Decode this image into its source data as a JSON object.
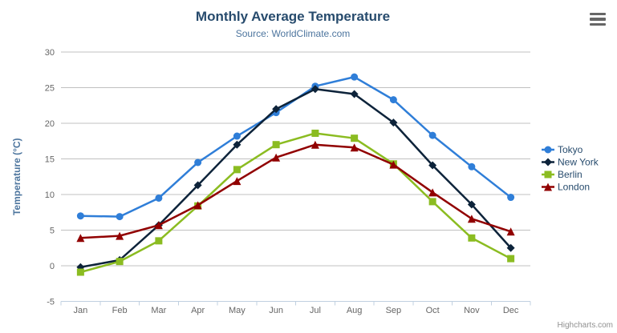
{
  "chart_data": {
    "type": "line",
    "title": "Monthly Average Temperature",
    "subtitle": "Source: WorldClimate.com",
    "xlabel": "",
    "ylabel": "Temperature (°C)",
    "ylim": [
      -5,
      30
    ],
    "ytick_interval": 5,
    "grid": true,
    "legend_position": "right",
    "categories": [
      "Jan",
      "Feb",
      "Mar",
      "Apr",
      "May",
      "Jun",
      "Jul",
      "Aug",
      "Sep",
      "Oct",
      "Nov",
      "Dec"
    ],
    "series": [
      {
        "name": "Tokyo",
        "color": "#2f7ed8",
        "marker": "circle",
        "values": [
          7.0,
          6.9,
          9.5,
          14.5,
          18.2,
          21.5,
          25.2,
          26.5,
          23.3,
          18.3,
          13.9,
          9.6
        ]
      },
      {
        "name": "New York",
        "color": "#0d233a",
        "marker": "diamond",
        "values": [
          -0.2,
          0.8,
          5.7,
          11.3,
          17.0,
          22.0,
          24.8,
          24.1,
          20.1,
          14.1,
          8.6,
          2.5
        ]
      },
      {
        "name": "Berlin",
        "color": "#8bbc21",
        "marker": "square",
        "values": [
          -0.9,
          0.6,
          3.5,
          8.4,
          13.5,
          17.0,
          18.6,
          17.9,
          14.3,
          9.0,
          3.9,
          1.0
        ]
      },
      {
        "name": "London",
        "color": "#910000",
        "marker": "triangle",
        "values": [
          3.9,
          4.2,
          5.7,
          8.5,
          11.9,
          15.2,
          17.0,
          16.6,
          14.2,
          10.3,
          6.6,
          4.8
        ]
      }
    ]
  },
  "credits": {
    "label": "Highcharts.com"
  },
  "menu": {
    "icon": "hamburger-menu-icon"
  },
  "theme": {
    "title_color": "#274b6d",
    "subtitle_color": "#4d759e",
    "axis_label_color": "#666666",
    "axis_title_color": "#4d759e",
    "grid_color": "#c0c0c0",
    "axis_line_color": "#c0d0e0",
    "legend_text_color": "#274b6d",
    "credits_color": "#909090",
    "menu_icon_color": "#666666",
    "background_color": "#ffffff"
  }
}
